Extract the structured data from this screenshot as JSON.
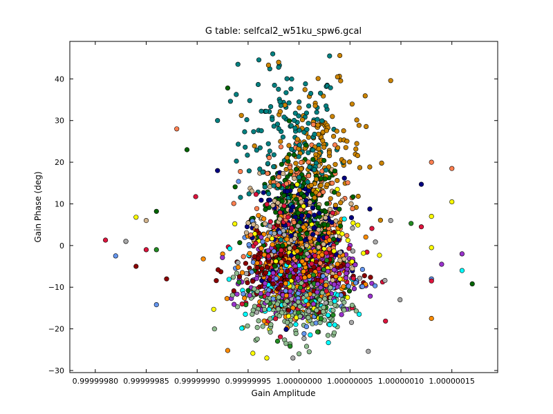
{
  "chart_data": {
    "type": "scatter",
    "title": "G table: selfcal2_w51ku_spw6.gcal",
    "xlabel": "Gain Amplitude",
    "ylabel": "Gain Phase (deg)",
    "xlim": [
      0.999999775,
      1.000000195
    ],
    "ylim": [
      -30.5,
      49
    ],
    "grid": false,
    "x_ticks": [
      0.9999998,
      0.99999985,
      0.9999999,
      0.99999995,
      1.0,
      1.00000005,
      1.0000001,
      1.00000015
    ],
    "x_tick_labels": [
      "0.99999980",
      "0.99999985",
      "0.99999990",
      "0.99999995",
      "1.00000000",
      "1.00000005",
      "1.00000010",
      "1.00000015"
    ],
    "y_ticks": [
      -30,
      -20,
      -10,
      0,
      10,
      20,
      30,
      40
    ],
    "y_tick_labels": [
      "−30",
      "−20",
      "−10",
      "0",
      "10",
      "20",
      "30",
      "40"
    ],
    "series": [
      {
        "color": "#008080",
        "phase_mean": 25,
        "phase_sd": 9,
        "amp_mean": 0.99999999,
        "amp_sd": 2.5e-08,
        "count": 140,
        "outliers": [
          [
            0.99999994,
            43.5
          ],
          [
            1.00000003,
            45.5
          ],
          [
            0.99999998,
            42.8
          ],
          [
            0.99999992,
            30.0
          ]
        ]
      },
      {
        "color": "#CC8400",
        "phase_mean": 22,
        "phase_sd": 8,
        "amp_mean": 1.00000002,
        "amp_sd": 2.2e-08,
        "count": 160,
        "outliers": [
          [
            1.00000004,
            45.6
          ],
          [
            0.99999997,
            43.3
          ],
          [
            0.99999998,
            44.0
          ],
          [
            1.00000009,
            39.6
          ]
        ]
      },
      {
        "color": "#006400",
        "phase_mean": 7,
        "phase_sd": 7,
        "amp_mean": 1.0,
        "amp_sd": 2.2e-08,
        "count": 190,
        "outliers": [
          [
            0.99999993,
            37.8
          ],
          [
            0.99999989,
            23.0
          ],
          [
            1.00000017,
            -9.2
          ],
          [
            0.99999986,
            8.2
          ]
        ]
      },
      {
        "color": "#000080",
        "phase_mean": 4,
        "phase_sd": 6,
        "amp_mean": 1.0,
        "amp_sd": 2.2e-08,
        "count": 130,
        "outliers": [
          [
            1.00000012,
            14.7
          ],
          [
            0.99999992,
            18.0
          ]
        ]
      },
      {
        "color": "#FF7F50",
        "phase_mean": 8,
        "phase_sd": 9,
        "amp_mean": 1.0,
        "amp_sd": 2.2e-08,
        "count": 150,
        "outliers": [
          [
            0.99999988,
            28.0
          ],
          [
            1.00000015,
            18.5
          ],
          [
            1.00000013,
            20.0
          ]
        ]
      },
      {
        "color": "#D2B48C",
        "phase_mean": 2,
        "phase_sd": 8,
        "amp_mean": 1.0,
        "amp_sd": 2.3e-08,
        "count": 150,
        "outliers": [
          [
            0.99999985,
            6.0
          ],
          [
            0.99999983,
            1.0
          ]
        ]
      },
      {
        "color": "#FF8C00",
        "phase_mean": -4,
        "phase_sd": 5,
        "amp_mean": 1.0,
        "amp_sd": 2.5e-08,
        "count": 230,
        "outliers": [
          [
            0.99999993,
            -25.2
          ],
          [
            1.00000013,
            -17.5
          ]
        ]
      },
      {
        "color": "#8B0000",
        "phase_mean": -6,
        "phase_sd": 4,
        "amp_mean": 0.99999999,
        "amp_sd": 2.7e-08,
        "count": 190,
        "outliers": [
          [
            0.99999984,
            -5.0
          ],
          [
            0.99999987,
            -8.0
          ]
        ]
      },
      {
        "color": "#9932CC",
        "phase_mean": -8,
        "phase_sd": 4,
        "amp_mean": 1.0,
        "amp_sd": 2.5e-08,
        "count": 220,
        "outliers": [
          [
            1.00000016,
            -2.0
          ],
          [
            1.00000014,
            -4.5
          ]
        ]
      },
      {
        "color": "#8FBC8F",
        "phase_mean": -14,
        "phase_sd": 4,
        "amp_mean": 1.0,
        "amp_sd": 2.5e-08,
        "count": 220,
        "outliers": [
          [
            1.0,
            -26.0
          ],
          [
            1.00000001,
            -25.5
          ]
        ]
      },
      {
        "color": "#DC143C",
        "phase_mean": -3,
        "phase_sd": 7,
        "amp_mean": 1.0,
        "amp_sd": 3e-08,
        "count": 130,
        "outliers": [
          [
            0.99999981,
            1.3
          ],
          [
            1.00000012,
            4.5
          ],
          [
            0.99999985,
            -1.0
          ],
          [
            1.00000013,
            -8.5
          ]
        ]
      },
      {
        "color": "#FFFF00",
        "phase_mean": -2,
        "phase_sd": 10,
        "amp_mean": 1.0,
        "amp_sd": 3e-08,
        "count": 70,
        "outliers": [
          [
            1.00000015,
            10.5
          ],
          [
            0.99999984,
            6.8
          ],
          [
            1.00000013,
            7.0
          ],
          [
            1.00000013,
            -0.5
          ]
        ]
      },
      {
        "color": "#00FFFF",
        "phase_mean": -10,
        "phase_sd": 6,
        "amp_mean": 1.0,
        "amp_sd": 2.8e-08,
        "count": 70,
        "outliers": [
          [
            1.00000016,
            -6.0
          ]
        ]
      },
      {
        "color": "#6495ED",
        "phase_mean": -6,
        "phase_sd": 6,
        "amp_mean": 1.0,
        "amp_sd": 3e-08,
        "count": 90,
        "outliers": [
          [
            0.99999982,
            -2.5
          ],
          [
            0.99999986,
            -14.2
          ],
          [
            1.00000013,
            -8.0
          ]
        ]
      },
      {
        "color": "#A9A9A9",
        "phase_mean": -5,
        "phase_sd": 8,
        "amp_mean": 1.0,
        "amp_sd": 3e-08,
        "count": 70,
        "outliers": [
          [
            0.99999983,
            1.0
          ],
          [
            1.00000009,
            6.0
          ]
        ]
      },
      {
        "color": "#228B22",
        "phase_mean": -8,
        "phase_sd": 7,
        "amp_mean": 1.0,
        "amp_sd": 2.6e-08,
        "count": 80,
        "outliers": [
          [
            0.99999986,
            -1.0
          ],
          [
            1.00000011,
            5.3
          ]
        ]
      }
    ]
  }
}
